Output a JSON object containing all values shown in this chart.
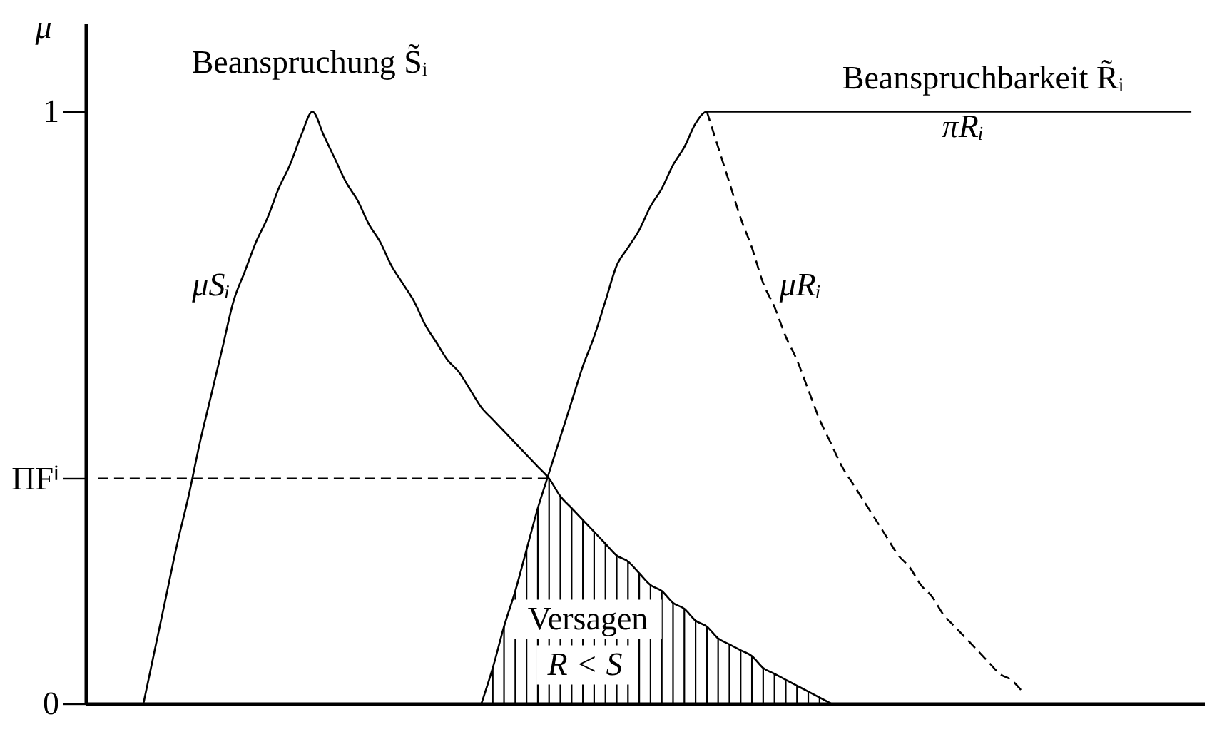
{
  "chart_data": {
    "type": "line",
    "categories": [
      null,
      null,
      null,
      null,
      null,
      null,
      null,
      null,
      null,
      null,
      null,
      null,
      null,
      null,
      null,
      null,
      null,
      null,
      null,
      null,
      null,
      null,
      null,
      null,
      null,
      null,
      null,
      null,
      null,
      null,
      null,
      null,
      null,
      null,
      null,
      null,
      null,
      null,
      null,
      null,
      null,
      null,
      null,
      null,
      null,
      null,
      null,
      null,
      null,
      null,
      null,
      null,
      null,
      null,
      null,
      null,
      null,
      null,
      null,
      null,
      null,
      null,
      null,
      null,
      null,
      null,
      null,
      null,
      null,
      null,
      null,
      null,
      null,
      null,
      null,
      null,
      null,
      null,
      null,
      null,
      null,
      null,
      null,
      null,
      null,
      null,
      null,
      null,
      null,
      null,
      null,
      null,
      null,
      null,
      null,
      null,
      null,
      null
    ],
    "ylabel": "μ",
    "ylim": [
      0,
      1.15
    ],
    "yticks": [
      0,
      {
        "value": 0.38,
        "label": "ΠFⁱ"
      },
      1
    ],
    "tick_labels": "y",
    "annotations": [
      "Beanspruchung S̃ᵢ",
      "Beanspruchbarkeit R̃ᵢ",
      "Versagen",
      "R < S"
    ],
    "series": [
      {
        "name": "μSᵢ",
        "color": "#000000",
        "values": [
          null,
          null,
          null,
          null,
          0,
          0.09,
          0.18,
          0.27,
          0.35,
          0.44,
          0.52,
          0.6,
          0.68,
          0.73,
          0.78,
          0.82,
          0.87,
          0.91,
          0.96,
          1,
          0.96,
          0.92,
          0.88,
          0.85,
          0.81,
          0.78,
          0.74,
          0.71,
          0.68,
          0.64,
          0.61,
          0.58,
          0.56,
          0.53,
          0.5,
          0.48,
          0.46,
          0.44,
          0.42,
          0.4,
          0.38,
          0.35,
          0.33,
          0.31,
          0.29,
          0.27,
          0.25,
          0.24,
          0.22,
          0.2,
          0.19,
          0.17,
          0.16,
          0.14,
          0.13,
          0.11,
          0.1,
          0.09,
          0.08,
          0.06,
          0.05,
          0.04,
          0.03,
          0.02,
          0.01,
          0,
          null,
          null,
          null,
          null,
          null,
          null,
          null,
          null,
          null,
          null,
          null,
          null,
          null,
          null,
          null,
          null,
          null,
          null,
          null,
          null,
          null,
          null,
          null,
          null,
          null,
          null,
          null,
          null,
          null,
          null,
          null,
          null
        ]
      },
      {
        "name": "πRᵢ",
        "color": "#000000",
        "values": [
          null,
          null,
          null,
          null,
          null,
          null,
          null,
          null,
          null,
          null,
          null,
          null,
          null,
          null,
          null,
          null,
          null,
          null,
          null,
          null,
          null,
          null,
          null,
          null,
          null,
          null,
          null,
          null,
          null,
          null,
          null,
          null,
          null,
          null,
          0,
          0.06,
          0.13,
          0.19,
          0.26,
          0.33,
          0.39,
          0.45,
          0.51,
          0.57,
          0.62,
          0.68,
          0.74,
          0.77,
          0.8,
          0.84,
          0.87,
          0.91,
          0.94,
          0.98,
          1,
          1,
          1,
          1,
          1,
          1,
          1,
          1,
          1,
          1,
          1,
          1,
          1,
          1,
          1,
          1,
          1,
          1,
          1,
          1,
          1,
          1,
          1,
          1,
          1,
          1,
          1,
          1,
          1,
          1,
          1,
          1,
          1,
          1,
          1,
          1,
          1,
          1,
          1,
          1,
          1,
          1,
          1,
          1
        ]
      },
      {
        "name": "μRᵢ",
        "color": "#000000",
        "line_style": "dashed",
        "values": [
          null,
          null,
          null,
          null,
          null,
          null,
          null,
          null,
          null,
          null,
          null,
          null,
          null,
          null,
          null,
          null,
          null,
          null,
          null,
          null,
          null,
          null,
          null,
          null,
          null,
          null,
          null,
          null,
          null,
          null,
          null,
          null,
          null,
          null,
          null,
          null,
          null,
          null,
          null,
          null,
          null,
          null,
          null,
          null,
          null,
          null,
          null,
          null,
          null,
          null,
          null,
          null,
          null,
          null,
          1,
          0.94,
          0.88,
          0.82,
          0.77,
          0.71,
          0.67,
          0.62,
          0.58,
          0.53,
          0.48,
          0.44,
          0.4,
          0.37,
          0.34,
          0.31,
          0.28,
          0.25,
          0.23,
          0.2,
          0.18,
          0.15,
          0.13,
          0.11,
          0.09,
          0.07,
          0.05,
          0.04,
          0.02,
          null,
          null,
          null,
          null,
          null,
          null,
          null,
          null,
          null,
          null,
          null,
          null,
          null,
          null,
          null
        ]
      },
      {
        "type": "bar",
        "color": "#000000",
        "values": [
          null,
          null,
          null,
          null,
          null,
          null,
          null,
          null,
          null,
          null,
          null,
          null,
          null,
          null,
          null,
          null,
          null,
          null,
          null,
          null,
          null,
          null,
          null,
          null,
          null,
          null,
          null,
          null,
          null,
          null,
          null,
          null,
          null,
          null,
          null,
          0.06,
          0.13,
          0.19,
          0.26,
          0.33,
          0.38,
          0.35,
          0.33,
          0.31,
          0.29,
          0.27,
          0.25,
          0.24,
          0.22,
          0.2,
          0.19,
          0.17,
          0.16,
          0.14,
          0.13,
          0.11,
          0.1,
          0.09,
          0.08,
          0.06,
          0.05,
          0.04,
          0.03,
          0.02,
          0.01,
          null,
          null,
          null,
          null,
          null,
          null,
          null,
          null,
          null,
          null,
          null,
          null,
          null,
          null,
          null,
          null,
          null,
          null,
          null,
          null,
          null,
          null,
          null,
          null,
          null,
          null,
          null,
          null,
          null,
          null,
          null,
          null,
          null
        ]
      },
      {
        "color": "#000000",
        "line_style": "dashed",
        "values": [
          0.38,
          0.38,
          0.38,
          0.38,
          0.38,
          0.38,
          0.38,
          0.38,
          0.38,
          0.38,
          0.38,
          0.38,
          0.38,
          0.38,
          0.38,
          0.38,
          0.38,
          0.38,
          0.38,
          0.38,
          0.38,
          0.38,
          0.38,
          0.38,
          0.38,
          0.38,
          0.38,
          0.38,
          0.38,
          0.38,
          0.38,
          0.38,
          0.38,
          0.38,
          0.38,
          0.38,
          0.38,
          0.38,
          0.38,
          0.38,
          0.38,
          null,
          null,
          null,
          null,
          null,
          null,
          null,
          null,
          null,
          null,
          null,
          null,
          null,
          null,
          null,
          null,
          null,
          null,
          null,
          null,
          null,
          null,
          null,
          null,
          null,
          null,
          null,
          null,
          null,
          null,
          null,
          null,
          null,
          null,
          null,
          null,
          null,
          null,
          null,
          null,
          null,
          null,
          null,
          null,
          null,
          null,
          null,
          null,
          null,
          null,
          null,
          null,
          null,
          null,
          null,
          null,
          null
        ]
      }
    ]
  }
}
